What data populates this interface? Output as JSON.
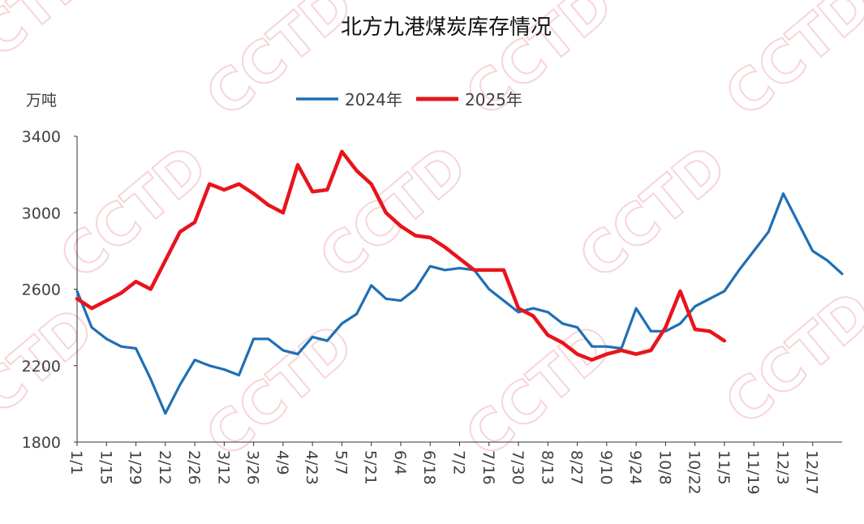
{
  "chart_data": {
    "type": "line",
    "title": "北方九港煤炭库存情况",
    "y_label": "万吨",
    "watermark": "CCTD",
    "categories": [
      "1/1",
      null,
      "1/15",
      null,
      "1/29",
      null,
      "2/12",
      null,
      "2/26",
      null,
      "3/12",
      null,
      "3/26",
      null,
      "4/9",
      null,
      "4/23",
      null,
      "5/7",
      null,
      "5/21",
      null,
      "6/4",
      null,
      "6/18",
      null,
      "7/2",
      null,
      "7/16",
      null,
      "7/30",
      null,
      "8/13",
      null,
      "8/27",
      null,
      "9/10",
      null,
      "9/24",
      null,
      "10/8",
      null,
      "10/22",
      null,
      "11/5",
      null,
      "11/19",
      null,
      "12/3",
      null,
      "12/17",
      null,
      null
    ],
    "series": [
      {
        "name": "2024年",
        "color": "#1f6fb5",
        "values": [
          2590,
          2400,
          2340,
          2300,
          2290,
          2130,
          1950,
          2100,
          2230,
          2200,
          2180,
          2150,
          2340,
          2340,
          2280,
          2260,
          2350,
          2330,
          2420,
          2470,
          2620,
          2550,
          2540,
          2600,
          2720,
          2700,
          2710,
          2700,
          2600,
          2540,
          2480,
          2500,
          2480,
          2420,
          2400,
          2300,
          2300,
          2290,
          2500,
          2380,
          2380,
          2420,
          2510,
          2550,
          2590,
          2700,
          2800,
          2900,
          3100,
          2950,
          2800,
          2750,
          2680
        ]
      },
      {
        "name": "2025年",
        "color": "#e8141c",
        "values": [
          2550,
          2500,
          2540,
          2580,
          2640,
          2600,
          2750,
          2900,
          2950,
          3150,
          3120,
          3150,
          3100,
          3040,
          3000,
          3250,
          3110,
          3120,
          3320,
          3220,
          3150,
          3000,
          2930,
          2880,
          2870,
          2820,
          2760,
          2700,
          2700,
          2700,
          2500,
          2460,
          2360,
          2320,
          2260,
          2230,
          2260,
          2280,
          2260,
          2280,
          2400,
          2590,
          2390,
          2380,
          2330,
          null,
          null,
          null,
          null,
          null,
          null,
          null,
          null
        ]
      }
    ],
    "ylim": [
      1800,
      3400
    ],
    "yticks": [
      1800,
      2200,
      2600,
      3000,
      3400
    ],
    "grid": false,
    "legend": "top"
  }
}
